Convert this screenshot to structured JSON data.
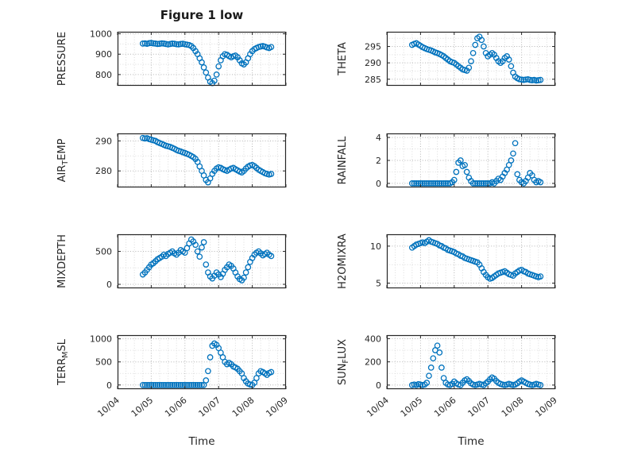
{
  "title": "Figure 1 low",
  "chart_data": {
    "type": "scatter",
    "xlabel": "Time",
    "xlim": [
      0,
      5
    ],
    "xtick_labels": [
      "10/04",
      "10/05",
      "10/06",
      "10/07",
      "10/08",
      "10/09"
    ],
    "axis_color": "#262626",
    "grid_color": "#b5b5b5",
    "minor_grid_color": "#dcdcdc",
    "marker_color": "#0072BD",
    "grid": true,
    "legend": "none",
    "x": [
      0.75,
      0.8125,
      0.875,
      0.9375,
      1,
      1.0625,
      1.125,
      1.1875,
      1.25,
      1.3125,
      1.375,
      1.4375,
      1.5,
      1.5625,
      1.625,
      1.6875,
      1.75,
      1.8125,
      1.875,
      1.9375,
      2,
      2.0625,
      2.125,
      2.1875,
      2.25,
      2.3125,
      2.375,
      2.4375,
      2.5,
      2.5625,
      2.625,
      2.6875,
      2.75,
      2.8125,
      2.875,
      2.9375,
      3,
      3.0625,
      3.125,
      3.1875,
      3.25,
      3.3125,
      3.375,
      3.4375,
      3.5,
      3.5625,
      3.625,
      3.6875,
      3.75,
      3.8125,
      3.875,
      3.9375,
      4,
      4.0625,
      4.125,
      4.1875,
      4.25,
      4.3125,
      4.375,
      4.4375,
      4.5,
      4.5625
    ],
    "subplots": [
      {
        "name": "pressure",
        "ylabel": {
          "pre": "PRESSURE",
          "sub": "",
          "post": ""
        },
        "yticks": [
          800,
          900,
          1000
        ],
        "ylim": [
          745,
          1010
        ],
        "label_offset": -66,
        "show_xticklabels": false,
        "y": [
          952,
          953,
          951,
          954,
          955,
          953,
          952,
          950,
          951,
          953,
          952,
          950,
          948,
          950,
          952,
          951,
          949,
          948,
          950,
          951,
          949,
          947,
          945,
          940,
          930,
          915,
          900,
          880,
          860,
          835,
          810,
          785,
          765,
          758,
          770,
          800,
          840,
          870,
          890,
          900,
          897,
          890,
          885,
          890,
          893,
          885,
          870,
          855,
          850,
          860,
          880,
          900,
          915,
          925,
          930,
          935,
          938,
          940,
          937,
          933,
          930,
          935
        ]
      },
      {
        "name": "theta",
        "ylabel": {
          "pre": "THETA",
          "sub": "",
          "post": ""
        },
        "yticks": [
          285,
          290,
          295
        ],
        "ylim": [
          283,
          299.5
        ],
        "label_offset": -52,
        "show_xticklabels": false,
        "y": [
          295.5,
          295.8,
          296,
          295.6,
          295.2,
          294.8,
          294.5,
          294.2,
          294,
          293.8,
          293.5,
          293.2,
          293,
          292.7,
          292.4,
          292,
          291.5,
          291,
          290.5,
          290.2,
          290,
          289.5,
          289,
          288.5,
          288,
          287.8,
          287.6,
          288.5,
          290.5,
          293,
          295.5,
          297.5,
          298,
          297,
          295,
          293,
          292,
          292.5,
          293,
          292.5,
          291.5,
          290.5,
          290,
          290.5,
          291.5,
          292,
          291,
          289,
          287,
          285.8,
          285.3,
          285,
          284.9,
          284.8,
          284.9,
          285,
          284.8,
          284.7,
          284.8,
          284.6,
          284.7,
          284.8
        ]
      },
      {
        "name": "air-temp",
        "ylabel": {
          "pre": "AIR",
          "sub": "T",
          "post": "EMP"
        },
        "yticks": [
          280,
          290
        ],
        "ylim": [
          274.5,
          292.5
        ],
        "label_offset": -66,
        "show_xticklabels": false,
        "y": [
          291,
          290.8,
          290.9,
          290.6,
          290.4,
          290.2,
          290,
          289.6,
          289.3,
          289,
          288.7,
          288.4,
          288.2,
          288,
          287.7,
          287.4,
          287,
          286.7,
          286.5,
          286.2,
          286,
          285.7,
          285.4,
          285,
          284.6,
          284,
          283,
          281.5,
          280,
          278.5,
          277,
          276.2,
          277.5,
          279,
          280,
          280.8,
          281.2,
          281,
          280.6,
          280.3,
          280,
          280.4,
          280.8,
          281,
          280.6,
          280.2,
          279.8,
          279.5,
          280,
          280.8,
          281.4,
          281.8,
          282,
          281.6,
          281,
          280.4,
          280,
          279.6,
          279.2,
          279,
          278.8,
          279
        ]
      },
      {
        "name": "rainfall",
        "ylabel": {
          "pre": "RAINFALL",
          "sub": "",
          "post": ""
        },
        "yticks": [
          0,
          2,
          4
        ],
        "ylim": [
          -0.35,
          4.35
        ],
        "label_offset": -52,
        "show_xticklabels": false,
        "y": [
          0,
          0,
          0,
          0,
          0,
          0,
          0,
          0,
          0,
          0,
          0,
          0,
          0,
          0,
          0,
          0,
          0,
          0,
          0,
          0.1,
          0.3,
          1,
          1.8,
          2,
          1.5,
          1.6,
          1,
          0.5,
          0.2,
          0,
          0,
          0,
          0,
          0,
          0,
          0,
          0,
          0,
          0.1,
          0,
          0.2,
          0.4,
          0.3,
          0.6,
          0.9,
          1.2,
          1.6,
          2,
          2.6,
          3.5,
          0.8,
          0.3,
          0.1,
          0,
          0.2,
          0.5,
          0.9,
          0.7,
          0.3,
          0.1,
          0.2,
          0.1
        ]
      },
      {
        "name": "mixdepth",
        "ylabel": {
          "pre": "MIXDEPTH",
          "sub": "",
          "post": ""
        },
        "yticks": [
          0,
          500
        ],
        "ylim": [
          -60,
          760
        ],
        "label_offset": -66,
        "show_xticklabels": false,
        "y": [
          150,
          180,
          220,
          260,
          300,
          320,
          350,
          380,
          400,
          420,
          450,
          430,
          460,
          480,
          500,
          470,
          450,
          480,
          520,
          500,
          480,
          550,
          620,
          680,
          650,
          600,
          500,
          420,
          560,
          640,
          300,
          180,
          120,
          90,
          130,
          180,
          150,
          110,
          160,
          220,
          260,
          300,
          280,
          240,
          180,
          120,
          80,
          60,
          100,
          180,
          260,
          340,
          400,
          450,
          480,
          500,
          470,
          440,
          460,
          480,
          450,
          430
        ]
      },
      {
        "name": "h2omixra",
        "ylabel": {
          "pre": "H2OMIXRA",
          "sub": "",
          "post": ""
        },
        "yticks": [
          5,
          10
        ],
        "ylim": [
          4.3,
          11.6
        ],
        "label_offset": -52,
        "show_xticklabels": false,
        "y": [
          9.8,
          10,
          10.2,
          10.3,
          10.4,
          10.5,
          10.4,
          10.6,
          10.8,
          10.6,
          10.5,
          10.4,
          10.3,
          10.1,
          10,
          9.8,
          9.7,
          9.5,
          9.4,
          9.3,
          9.2,
          9,
          8.9,
          8.7,
          8.6,
          8.4,
          8.3,
          8.2,
          8.1,
          8,
          7.9,
          7.8,
          7.5,
          7,
          6.5,
          6.1,
          5.8,
          5.6,
          5.7,
          5.9,
          6.1,
          6.3,
          6.4,
          6.5,
          6.6,
          6.4,
          6.2,
          6.1,
          6,
          6.3,
          6.5,
          6.7,
          6.8,
          6.6,
          6.5,
          6.3,
          6.2,
          6.1,
          6,
          5.9,
          5.8,
          5.9
        ]
      },
      {
        "name": "terr-msl",
        "ylabel": {
          "pre": "TERR",
          "sub": "M",
          "post": "SL"
        },
        "yticks": [
          0,
          500,
          1000
        ],
        "ylim": [
          -90,
          1080
        ],
        "label_offset": -66,
        "show_xticklabels": true,
        "y": [
          0,
          0,
          0,
          0,
          0,
          0,
          0,
          0,
          0,
          0,
          0,
          0,
          0,
          0,
          0,
          0,
          0,
          0,
          0,
          0,
          0,
          0,
          0,
          0,
          0,
          0,
          0,
          0,
          0,
          0,
          100,
          300,
          600,
          850,
          900,
          870,
          800,
          700,
          600,
          500,
          450,
          480,
          450,
          400,
          380,
          350,
          300,
          250,
          150,
          80,
          30,
          10,
          0,
          50,
          150,
          250,
          300,
          280,
          250,
          220,
          260,
          280
        ]
      },
      {
        "name": "sun-flux",
        "ylabel": {
          "pre": "SUN",
          "sub": "F",
          "post": "LUX"
        },
        "yticks": [
          0,
          200,
          400
        ],
        "ylim": [
          -35,
          430
        ],
        "label_offset": -52,
        "show_xticklabels": true,
        "y": [
          0,
          5,
          0,
          8,
          3,
          0,
          5,
          20,
          80,
          150,
          230,
          300,
          340,
          280,
          150,
          60,
          20,
          5,
          0,
          10,
          30,
          15,
          5,
          0,
          20,
          40,
          50,
          35,
          15,
          5,
          0,
          5,
          10,
          5,
          0,
          15,
          30,
          50,
          65,
          55,
          35,
          20,
          10,
          5,
          0,
          5,
          10,
          5,
          0,
          5,
          15,
          30,
          40,
          30,
          20,
          10,
          5,
          0,
          5,
          10,
          5,
          0
        ]
      }
    ]
  }
}
